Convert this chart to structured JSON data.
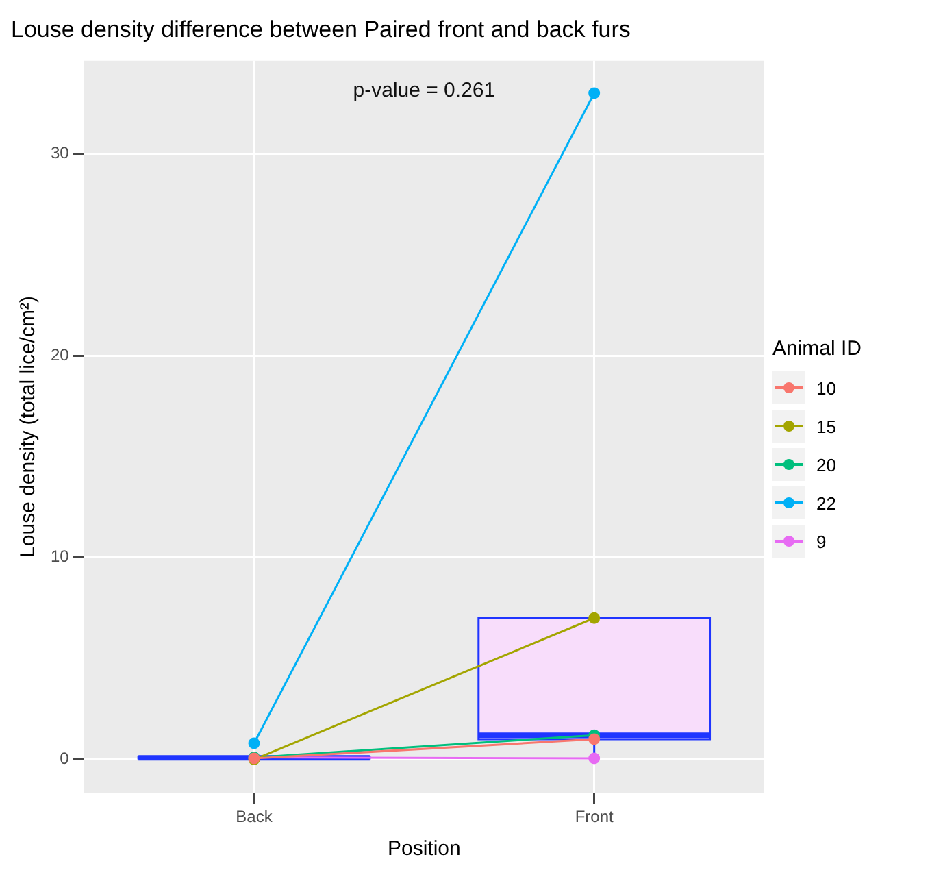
{
  "chart_data": {
    "type": "box",
    "title": "Louse density difference between Paired front and back furs",
    "xlabel": "Position",
    "ylabel": "Louse density (total lice/cm²)",
    "legend_title": "Animal ID",
    "annotations": [
      "p-value = 0.261"
    ],
    "categories": [
      "Back",
      "Front"
    ],
    "boxes": [
      {
        "low": 0,
        "q1": 0.05,
        "median": 0.08,
        "q3": 0.1,
        "high": 0.1
      },
      {
        "low": 0.05,
        "q1": 1.0,
        "median": 1.2,
        "q3": 7.0,
        "high": 7.0
      }
    ],
    "series": [
      {
        "name": "10",
        "type": "line",
        "color": "#f8766d",
        "values": [
          0.05,
          1.0
        ]
      },
      {
        "name": "15",
        "type": "line",
        "color": "#a3a500",
        "values": [
          0.0,
          7.0
        ]
      },
      {
        "name": "20",
        "type": "line",
        "color": "#00bf7d",
        "values": [
          0.1,
          1.2
        ]
      },
      {
        "name": "22",
        "type": "line",
        "color": "#00b0f6",
        "values": [
          0.8,
          33.0
        ]
      },
      {
        "name": "9",
        "type": "line",
        "color": "#e76bf3",
        "values": [
          0.1,
          0.05
        ]
      }
    ],
    "ylim": [
      -1.65,
      34.6
    ],
    "yticks": [
      0,
      10,
      20,
      30
    ],
    "grid": true,
    "legend": "right",
    "marker": "circle"
  }
}
